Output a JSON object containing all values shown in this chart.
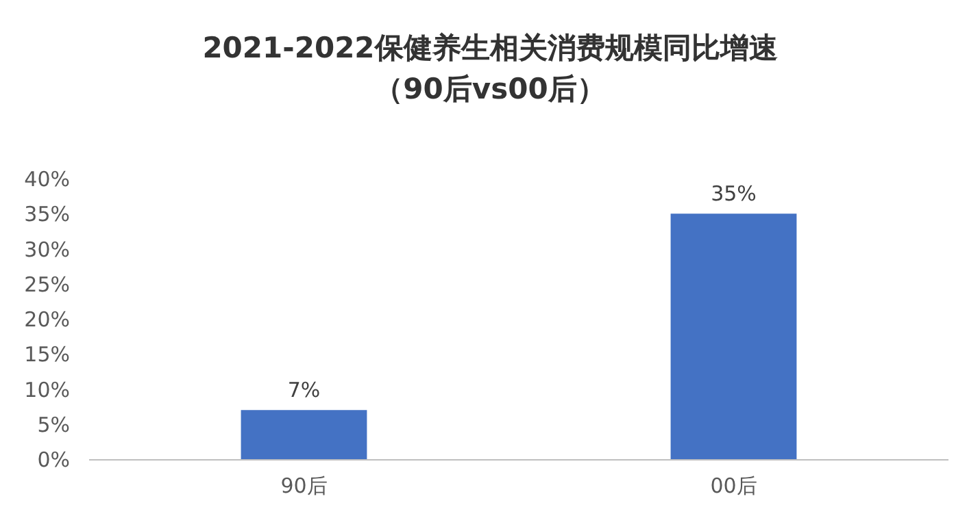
{
  "chart_data": {
    "type": "bar",
    "title": "2021-2022保健养生相关消费规模同比增速",
    "subtitle": "（90后vs00后）",
    "categories": [
      "90后",
      "00后"
    ],
    "values": [
      7,
      35
    ],
    "color": "#4472c4",
    "value_labels": [
      "7%",
      "35%"
    ],
    "ylim": [
      0,
      40
    ],
    "yticks": [
      {
        "value": 0,
        "label": "0%"
      },
      {
        "value": 5,
        "label": "5%"
      },
      {
        "value": 10,
        "label": "10%"
      },
      {
        "value": 15,
        "label": "15%"
      },
      {
        "value": 20,
        "label": "20%"
      },
      {
        "value": 25,
        "label": "25%"
      },
      {
        "value": 30,
        "label": "30%"
      },
      {
        "value": 35,
        "label": "35%"
      },
      {
        "value": 40,
        "label": "40%"
      }
    ],
    "grid": false
  }
}
